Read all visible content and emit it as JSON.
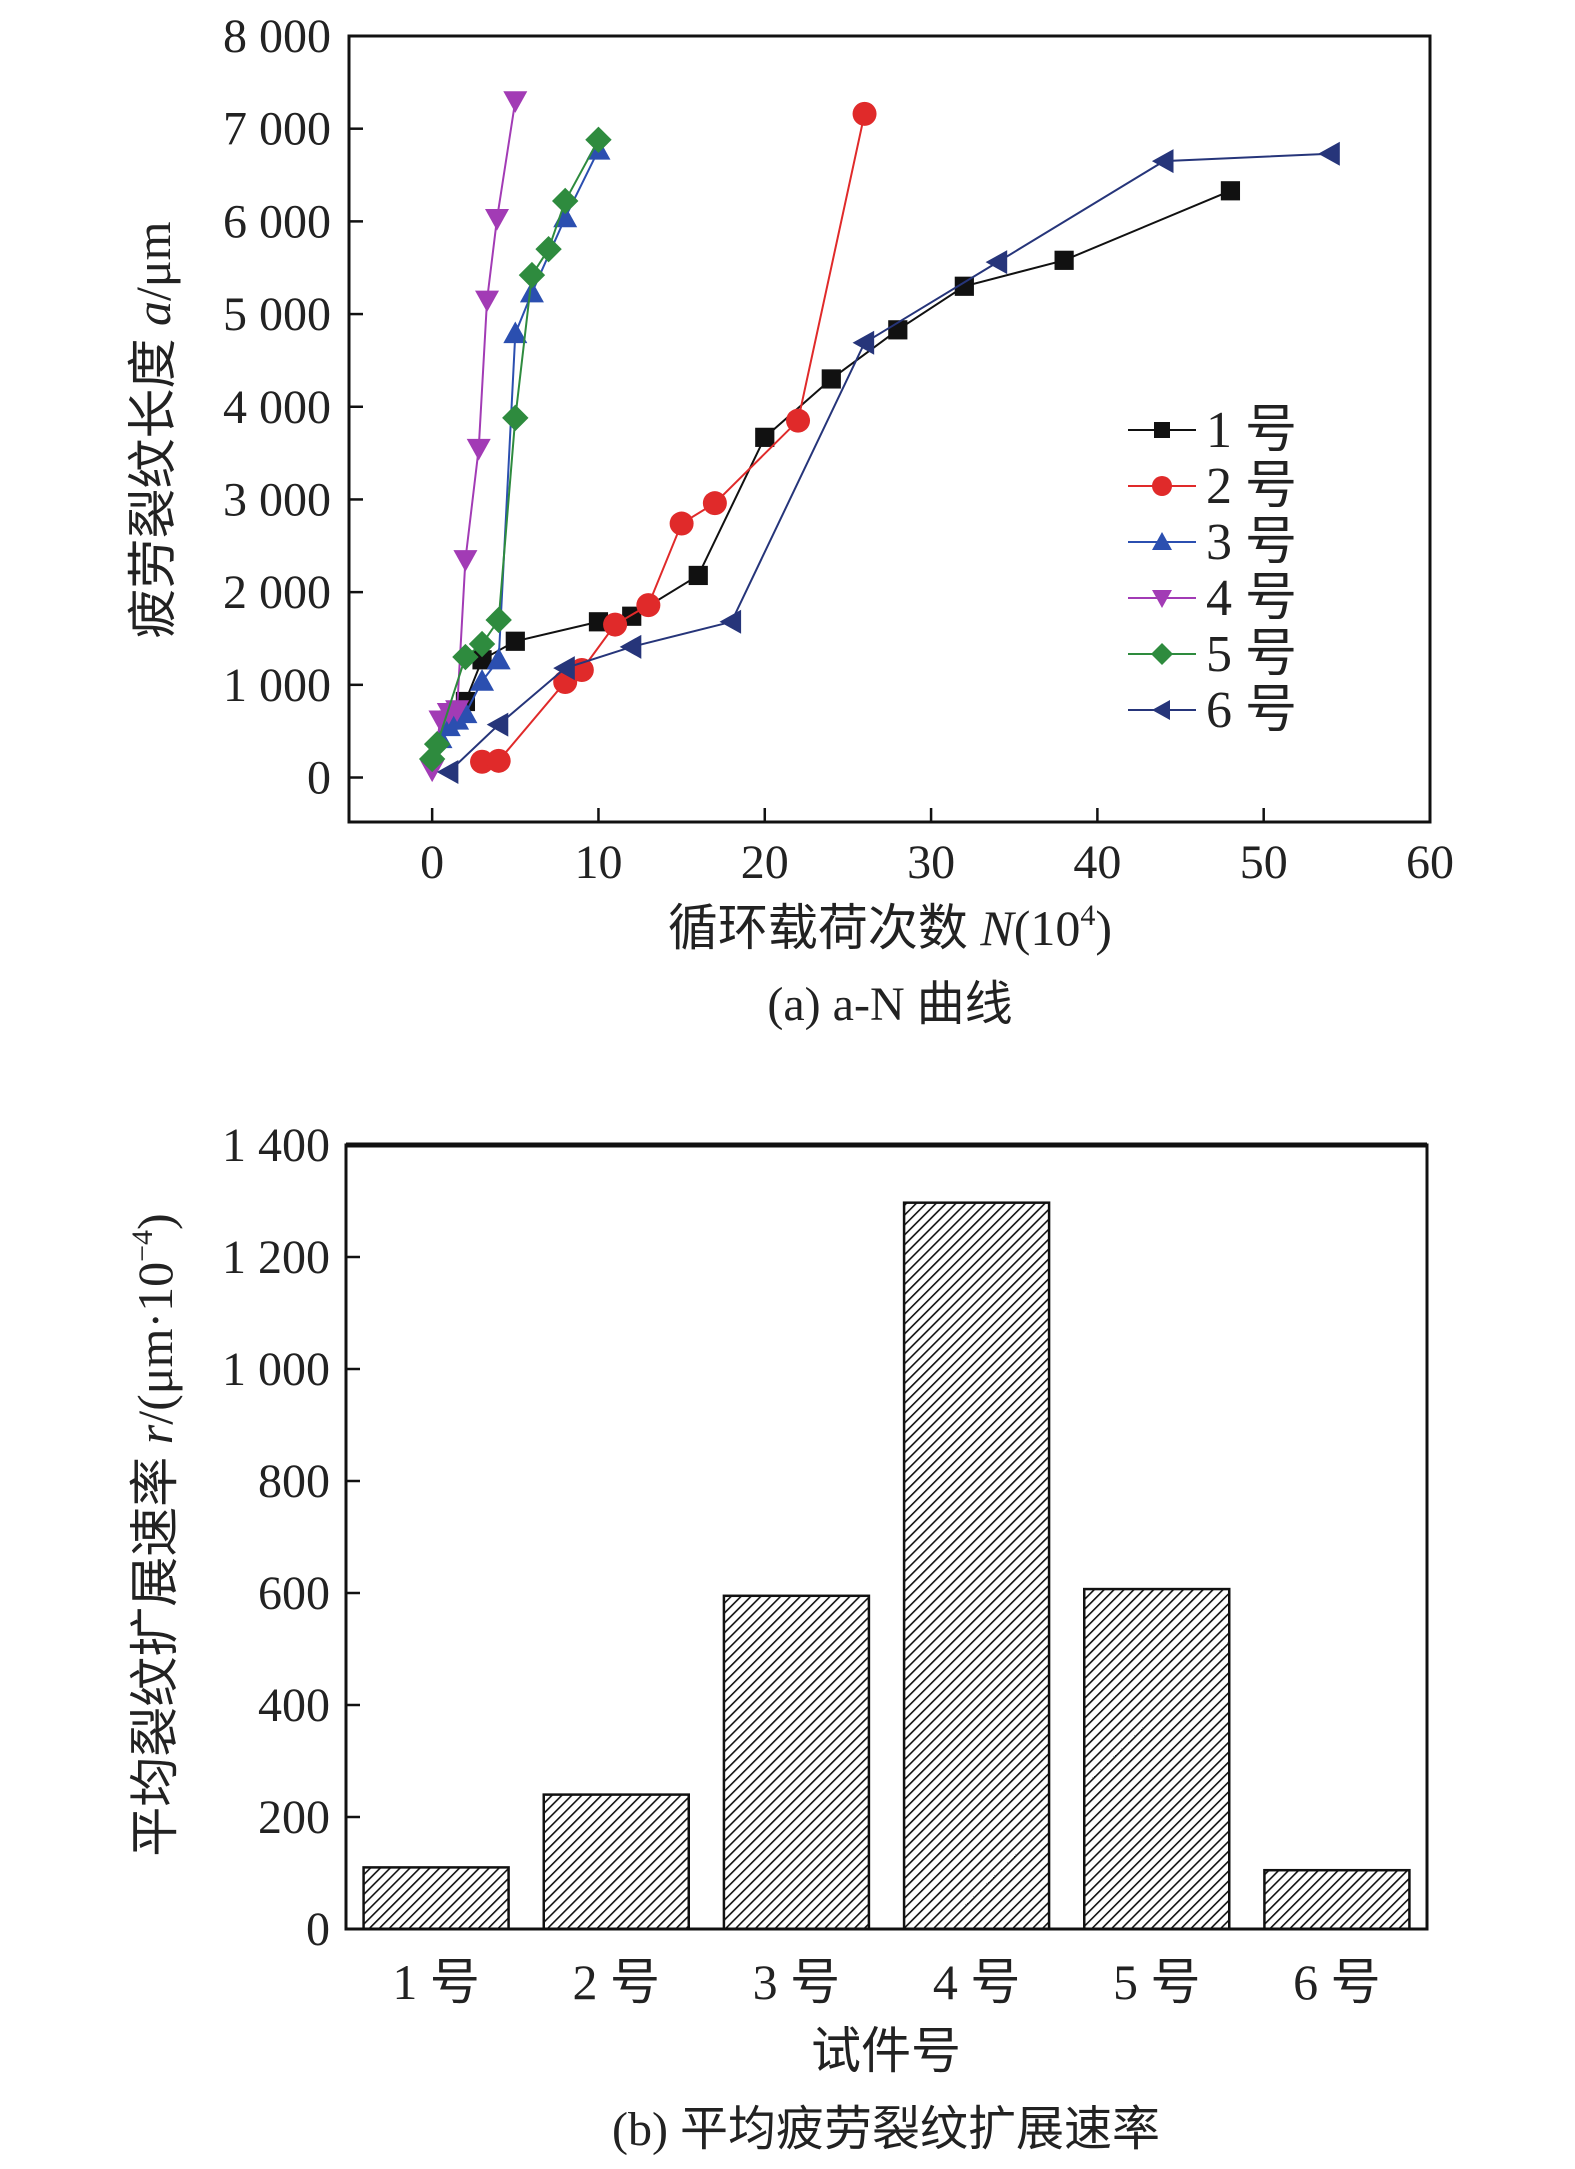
{
  "chart_data": [
    {
      "type": "line",
      "caption": "(a) a-N 曲线",
      "xlabel": "循环载荷次数",
      "xlabel_var": "N",
      "xlabel_unit": "(10",
      "xlabel_exp": "4",
      "xlabel_close": ")",
      "ylabel": "疲劳裂纹长度",
      "ylabel_var": "a",
      "ylabel_unit": "/μm",
      "xlim": [
        -5,
        60
      ],
      "ylim": [
        -480,
        8000
      ],
      "xticks": [
        0,
        10,
        20,
        30,
        40,
        50,
        60
      ],
      "yticks": [
        0,
        1000,
        2000,
        3000,
        4000,
        5000,
        6000,
        7000,
        8000
      ],
      "ytick_labels": [
        "0",
        "1 000",
        "2 000",
        "3 000",
        "4 000",
        "5 000",
        "6 000",
        "7 000",
        "8 000"
      ],
      "legend_position": "center-right",
      "series": [
        {
          "name": "1 号",
          "color": "#111111",
          "marker": "square",
          "x": [
            1,
            2,
            3,
            5,
            10,
            12,
            16,
            20,
            24,
            28,
            32,
            38,
            48
          ],
          "y": [
            620,
            820,
            1270,
            1470,
            1680,
            1740,
            2180,
            3670,
            4300,
            4830,
            5300,
            5580,
            6330
          ]
        },
        {
          "name": "2 号",
          "color": "#e02a2a",
          "marker": "circle",
          "x": [
            3,
            4,
            8,
            9,
            11,
            13,
            15,
            17,
            22,
            26
          ],
          "y": [
            170,
            180,
            1030,
            1160,
            1650,
            1860,
            2740,
            2960,
            3850,
            7160
          ]
        },
        {
          "name": "3 号",
          "color": "#2b4fb0",
          "marker": "triangle-up",
          "x": [
            0.5,
            1,
            1.5,
            2,
            3,
            4,
            5,
            6,
            8,
            10
          ],
          "y": [
            420,
            550,
            620,
            690,
            1040,
            1270,
            4790,
            5230,
            6040,
            6770
          ]
        },
        {
          "name": "4 号",
          "color": "#a23bb5",
          "marker": "triangle-down",
          "x": [
            0,
            0.5,
            1,
            1.5,
            2,
            2.8,
            3.3,
            3.9,
            5
          ],
          "y": [
            80,
            620,
            700,
            730,
            2350,
            3550,
            5150,
            6030,
            7300
          ]
        },
        {
          "name": "5 号",
          "color": "#2e8b3e",
          "marker": "diamond",
          "x": [
            0,
            0.3,
            2,
            3,
            4,
            5,
            6,
            7,
            8,
            10
          ],
          "y": [
            200,
            360,
            1300,
            1440,
            1700,
            3880,
            5420,
            5700,
            6220,
            6880
          ]
        },
        {
          "name": "6 号",
          "color": "#26357a",
          "marker": "triangle-left",
          "x": [
            1,
            4,
            8,
            12,
            18,
            26,
            34,
            44,
            54
          ],
          "y": [
            60,
            570,
            1180,
            1410,
            1680,
            4690,
            5560,
            6650,
            6730
          ]
        }
      ]
    },
    {
      "type": "bar",
      "caption": "(b) 平均疲劳裂纹扩展速率",
      "xlabel": "试件号",
      "ylabel": "平均裂纹扩展速率",
      "ylabel_var": "r",
      "ylabel_unit": "/(μm·10",
      "ylabel_exp": "−4",
      "ylabel_close": ")",
      "categories": [
        "1 号",
        "2 号",
        "3 号",
        "4 号",
        "5 号",
        "6 号"
      ],
      "values": [
        110,
        240,
        595,
        1297,
        607,
        105
      ],
      "ylim": [
        0,
        1400
      ],
      "yticks": [
        0,
        200,
        400,
        600,
        800,
        1000,
        1200,
        1400
      ],
      "ytick_labels": [
        "0",
        "200",
        "400",
        "600",
        "800",
        "1 000",
        "1 200",
        "1 400"
      ],
      "fill": "diagonal-hatch"
    }
  ]
}
